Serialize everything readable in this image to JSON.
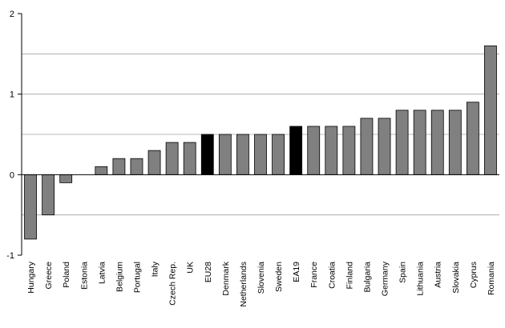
{
  "chart_data": {
    "type": "bar",
    "title": "",
    "xlabel": "",
    "ylabel": "",
    "ylim": [
      -1,
      2
    ],
    "yticks": [
      -1,
      0,
      1,
      2
    ],
    "grid": "horizontal dashed at 0.5 steps",
    "categories": [
      "Hungary",
      "Greece",
      "Poland",
      "Estonia",
      "Latvia",
      "Belgium",
      "Portugal",
      "Italy",
      "Czech Rep.",
      "UK",
      "EU28",
      "Denmark",
      "Netherlands",
      "Slovenia",
      "Sweden",
      "EA19",
      "France",
      "Croatia",
      "Finland",
      "Bulgaria",
      "Germany",
      "Spain",
      "Lithuania",
      "Austria",
      "Slovakia",
      "Cyprus",
      "Romania"
    ],
    "values": [
      -0.8,
      -0.5,
      -0.1,
      0.0,
      0.1,
      0.2,
      0.2,
      0.3,
      0.4,
      0.4,
      0.5,
      0.5,
      0.5,
      0.5,
      0.5,
      0.6,
      0.6,
      0.6,
      0.6,
      0.7,
      0.7,
      0.8,
      0.8,
      0.8,
      0.8,
      0.9,
      1.6
    ],
    "highlight": [
      "EU28",
      "EA19"
    ],
    "colors": {
      "bar": "#808080",
      "highlight": "#000000",
      "edge": "#000000",
      "grid": "#a0a0a0"
    }
  }
}
